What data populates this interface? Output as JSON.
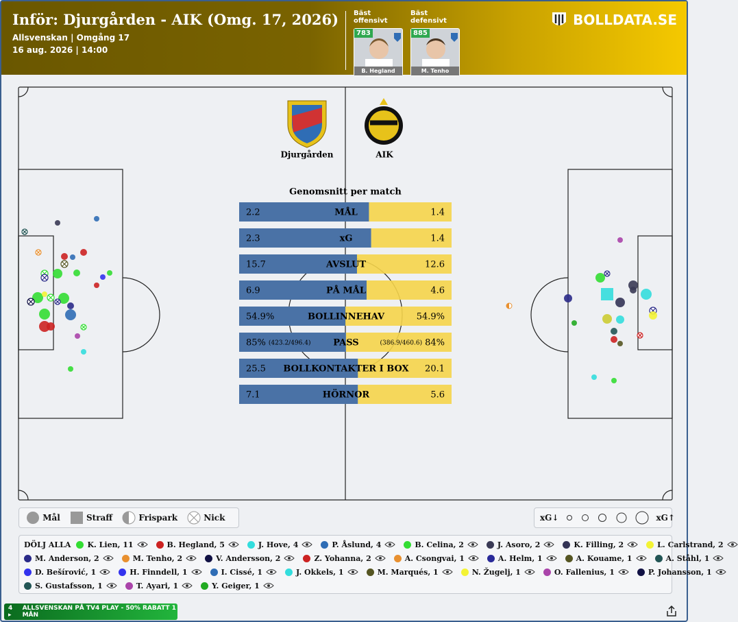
{
  "header": {
    "title": "Inför: Djurgården - AIK (Omg. 17, 2026)",
    "league": "Allsvenskan | Omgång 17",
    "date": "16 aug. 2026 | 14:00",
    "brand": "BOLLDATA.SE",
    "best": [
      {
        "caption": "Bäst offensivt",
        "rating": 783,
        "player": "B. Hegland"
      },
      {
        "caption": "Bäst defensivt",
        "rating": 885,
        "player": "M. Tenho"
      }
    ]
  },
  "teams": {
    "home": "Djurgården",
    "away": "AIK"
  },
  "stats": {
    "title": "Genomsnitt per match",
    "home_color": "#4a72a6",
    "away_color": "#f5d44a",
    "rows": [
      {
        "label": "MÅL",
        "home": 2.2,
        "away": 1.4
      },
      {
        "label": "xG",
        "home": 2.3,
        "away": 1.4
      },
      {
        "label": "AVSLUT",
        "home": 15.7,
        "away": 12.6
      },
      {
        "label": "PÅ MÅL",
        "home": 6.9,
        "away": 4.6
      },
      {
        "label": "BOLLINNEHAV",
        "home": 54.9,
        "home_label": "54.9%",
        "away": 54.9,
        "away_label": "54.9%"
      },
      {
        "label": "PASS",
        "home": 85,
        "home_label": "85%",
        "home_detail": "(423.2/496.4)",
        "away": 84,
        "away_label": "84%",
        "away_detail": "(386.9/460.6)"
      },
      {
        "label": "BOLLKONTAKTER I BOX",
        "home": 25.5,
        "away": 20.1
      },
      {
        "label": "HÖRNOR",
        "home": 7.1,
        "away": 5.6
      }
    ]
  },
  "legend": {
    "types": [
      "Mål",
      "Straff",
      "Frispark",
      "Nick"
    ],
    "xg_low": "xG↓",
    "xg_high": "xG↑"
  },
  "players": {
    "hide_all": "DÖLJ ALLA",
    "rows": [
      [
        {
          "label": "K. Lien, 11",
          "color": "#33dd33"
        },
        {
          "label": "B. Hegland, 5",
          "color": "#cc2222"
        },
        {
          "label": "J. Hove, 4",
          "color": "#33dddd"
        },
        {
          "label": "P. Åslund, 4",
          "color": "#2f6db5"
        },
        {
          "label": "B. Celina, 2",
          "color": "#33dd33"
        },
        {
          "label": "J. Asoro, 2",
          "color": "#3a3a55"
        },
        {
          "label": "K. Filling, 2",
          "color": "#333355"
        },
        {
          "label": "L. Carlstrand, 2",
          "color": "#f3f335"
        }
      ],
      [
        {
          "label": "M. Anderson, 2",
          "color": "#2a2a88"
        },
        {
          "label": "M. Tenho, 2",
          "color": "#e89030"
        },
        {
          "label": "V. Andersson, 2",
          "color": "#111144"
        },
        {
          "label": "Z. Yohanna, 2",
          "color": "#cc2222"
        },
        {
          "label": "A. Csongvai, 1",
          "color": "#e89030"
        },
        {
          "label": "A. Helm, 1",
          "color": "#2a2a99"
        },
        {
          "label": "A. Kouame, 1",
          "color": "#555522"
        },
        {
          "label": "A. Ståhl, 1",
          "color": "#225555"
        }
      ],
      [
        {
          "label": "D. Bešírović, 1",
          "color": "#3333ee"
        },
        {
          "label": "H. Finndell, 1",
          "color": "#3333ee"
        },
        {
          "label": "I. Cissé, 1",
          "color": "#2f6db5"
        },
        {
          "label": "J. Okkels, 1",
          "color": "#33dddd"
        },
        {
          "label": "M. Marqués, 1",
          "color": "#555522"
        },
        {
          "label": "N. Žugelj, 1",
          "color": "#f3f335"
        },
        {
          "label": "O. Fallenius, 1",
          "color": "#aa44aa"
        },
        {
          "label": "P. Johansson, 1",
          "color": "#111144"
        }
      ],
      [
        {
          "label": "S. Gustafsson, 1",
          "color": "#225555"
        },
        {
          "label": "T. Ayari, 1",
          "color": "#aa44aa"
        },
        {
          "label": "Y. Geiger, 1",
          "color": "#22aa22"
        }
      ]
    ]
  },
  "footer": {
    "badge": "4 ▸",
    "promo": "ALLSVENSKAN PÅ TV4 PLAY - 50% RABATT 1 MÅN"
  }
}
